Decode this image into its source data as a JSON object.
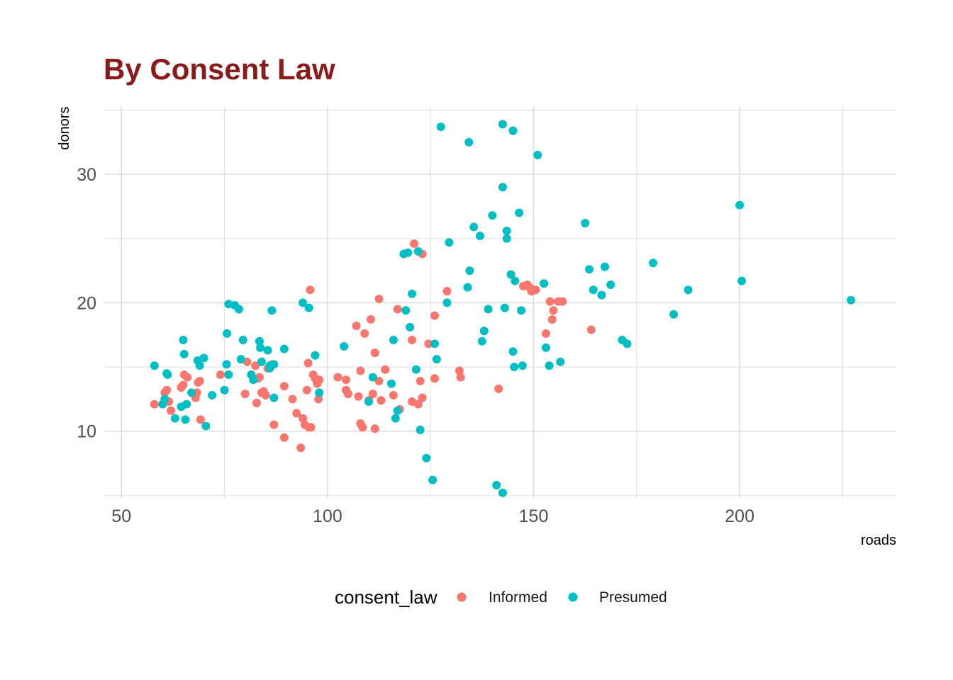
{
  "chart_data": {
    "type": "scatter",
    "title": "By Consent Law",
    "xlabel": "roads",
    "ylabel": "donors",
    "xlim": [
      46,
      238
    ],
    "ylim": [
      4.8,
      35.3
    ],
    "x_ticks": [
      50,
      100,
      150,
      200
    ],
    "x_minor_ticks": [
      75,
      125,
      175,
      225
    ],
    "y_ticks": [
      10,
      20,
      30
    ],
    "y_minor_ticks": [
      5,
      15,
      25,
      35
    ],
    "grid": true,
    "legend": {
      "title": "consent_law",
      "position": "bottom"
    },
    "colors": {
      "title": "#8b1a1a",
      "grid": "#d9d9d9"
    },
    "series": [
      {
        "name": "Informed",
        "color": "#f8766d",
        "points": [
          [
            58,
            12.1
          ],
          [
            60.5,
            13.0
          ],
          [
            61,
            13.2
          ],
          [
            61.5,
            12.3
          ],
          [
            62,
            11.6
          ],
          [
            64.5,
            13.4
          ],
          [
            65,
            13.6
          ],
          [
            65.2,
            14.4
          ],
          [
            66,
            14.2
          ],
          [
            68,
            12.6
          ],
          [
            68.3,
            13.0
          ],
          [
            68.6,
            13.8
          ],
          [
            69,
            13.9
          ],
          [
            69.2,
            10.9
          ],
          [
            74,
            14.4
          ],
          [
            76,
            14.4
          ],
          [
            80,
            12.9
          ],
          [
            80.5,
            15.4
          ],
          [
            82.5,
            15.1
          ],
          [
            82.8,
            12.2
          ],
          [
            83,
            14.1
          ],
          [
            83.5,
            14.2
          ],
          [
            84,
            13.0
          ],
          [
            84.5,
            13.1
          ],
          [
            85,
            12.8
          ],
          [
            85.5,
            14.9
          ],
          [
            86.5,
            15.2
          ],
          [
            87,
            10.5
          ],
          [
            89.5,
            13.5
          ],
          [
            89.5,
            9.5
          ],
          [
            91.5,
            12.5
          ],
          [
            92.5,
            11.4
          ],
          [
            93.5,
            8.7
          ],
          [
            94,
            11.0
          ],
          [
            94.5,
            10.5
          ],
          [
            95,
            13.2
          ],
          [
            95.3,
            15.3
          ],
          [
            95.5,
            10.3
          ],
          [
            96,
            10.3
          ],
          [
            95.8,
            21.0
          ],
          [
            96.5,
            14.4
          ],
          [
            97,
            14.1
          ],
          [
            97.5,
            13.7
          ],
          [
            97.8,
            12.5
          ],
          [
            98,
            14.0
          ],
          [
            102.5,
            14.2
          ],
          [
            104.5,
            14.0
          ],
          [
            104.5,
            13.2
          ],
          [
            105,
            12.9
          ],
          [
            107,
            18.2
          ],
          [
            107.5,
            12.7
          ],
          [
            108,
            14.7
          ],
          [
            108,
            10.6
          ],
          [
            108.5,
            10.3
          ],
          [
            109,
            17.6
          ],
          [
            110,
            12.4
          ],
          [
            110.5,
            18.7
          ],
          [
            111,
            12.9
          ],
          [
            111.5,
            10.2
          ],
          [
            111.5,
            16.1
          ],
          [
            112.5,
            20.3
          ],
          [
            112.5,
            13.9
          ],
          [
            113,
            12.4
          ],
          [
            114,
            14.8
          ],
          [
            116,
            12.8
          ],
          [
            117,
            19.5
          ],
          [
            117.5,
            11.7
          ],
          [
            120.5,
            12.3
          ],
          [
            120.5,
            17.1
          ],
          [
            121,
            24.6
          ],
          [
            122,
            12.1
          ],
          [
            122.5,
            13.9
          ],
          [
            123,
            23.8
          ],
          [
            123,
            12.6
          ],
          [
            124.5,
            16.8
          ],
          [
            126,
            14.1
          ],
          [
            126,
            19.0
          ],
          [
            129,
            20.9
          ],
          [
            132,
            14.7
          ],
          [
            132.3,
            14.2
          ],
          [
            141.5,
            13.3
          ],
          [
            147.5,
            21.3
          ],
          [
            148.5,
            21.4
          ],
          [
            149,
            21.2
          ],
          [
            149.5,
            20.9
          ],
          [
            150.5,
            21.0
          ],
          [
            153,
            17.6
          ],
          [
            154,
            20.1
          ],
          [
            154.5,
            18.7
          ],
          [
            154.8,
            19.4
          ],
          [
            156,
            20.1
          ],
          [
            157,
            20.1
          ],
          [
            164,
            17.9
          ]
        ]
      },
      {
        "name": "Presumed",
        "color": "#00bfc4",
        "points": [
          [
            58,
            15.1
          ],
          [
            60,
            12.1
          ],
          [
            60.5,
            12.5
          ],
          [
            61,
            14.5
          ],
          [
            61.2,
            14.4
          ],
          [
            63,
            11.0
          ],
          [
            64.5,
            11.9
          ],
          [
            65,
            17.1
          ],
          [
            65.2,
            16.0
          ],
          [
            65.5,
            10.9
          ],
          [
            65.8,
            12.1
          ],
          [
            67,
            13.0
          ],
          [
            68.5,
            15.5
          ],
          [
            69,
            15.1
          ],
          [
            70,
            15.7
          ],
          [
            70.5,
            10.4
          ],
          [
            72,
            12.8
          ],
          [
            75,
            13.2
          ],
          [
            75.5,
            15.2
          ],
          [
            75.6,
            17.6
          ],
          [
            76,
            19.9
          ],
          [
            76,
            14.4
          ],
          [
            77.5,
            19.8
          ],
          [
            78.5,
            19.5
          ],
          [
            79,
            15.6
          ],
          [
            79.5,
            17.1
          ],
          [
            81.5,
            14.4
          ],
          [
            82,
            14.0
          ],
          [
            83.5,
            17.0
          ],
          [
            83.7,
            16.5
          ],
          [
            84,
            15.4
          ],
          [
            85.5,
            16.3
          ],
          [
            86,
            15.1
          ],
          [
            86,
            14.9
          ],
          [
            86.5,
            19.4
          ],
          [
            87,
            12.6
          ],
          [
            87,
            15.2
          ],
          [
            89.5,
            16.4
          ],
          [
            94,
            20.0
          ],
          [
            95.5,
            19.6
          ],
          [
            97,
            15.9
          ],
          [
            98,
            13.0
          ],
          [
            104,
            16.6
          ],
          [
            110,
            12.3
          ],
          [
            111,
            14.2
          ],
          [
            115.5,
            13.7
          ],
          [
            116,
            17.1
          ],
          [
            116.5,
            11.0
          ],
          [
            117,
            11.6
          ],
          [
            118.5,
            23.8
          ],
          [
            119,
            19.4
          ],
          [
            119.5,
            23.9
          ],
          [
            120,
            18.1
          ],
          [
            120.5,
            20.7
          ],
          [
            121.5,
            14.8
          ],
          [
            122,
            24.0
          ],
          [
            122.5,
            10.1
          ],
          [
            124,
            7.9
          ],
          [
            125.5,
            6.2
          ],
          [
            126,
            16.8
          ],
          [
            126.5,
            15.6
          ],
          [
            127.5,
            33.7
          ],
          [
            129,
            20.0
          ],
          [
            129.5,
            24.7
          ],
          [
            134,
            21.2
          ],
          [
            134.3,
            32.5
          ],
          [
            134.5,
            22.5
          ],
          [
            135.5,
            25.9
          ],
          [
            137,
            25.2
          ],
          [
            137.5,
            17.0
          ],
          [
            138,
            17.8
          ],
          [
            139,
            19.5
          ],
          [
            140,
            26.8
          ],
          [
            141,
            5.8
          ],
          [
            142.5,
            5.2
          ],
          [
            142.5,
            33.9
          ],
          [
            142.5,
            29.0
          ],
          [
            143,
            19.6
          ],
          [
            143.5,
            25.6
          ],
          [
            143.5,
            25.0
          ],
          [
            144.5,
            22.2
          ],
          [
            145,
            33.4
          ],
          [
            145,
            16.2
          ],
          [
            145.3,
            15.0
          ],
          [
            145.5,
            21.7
          ],
          [
            146.5,
            27.0
          ],
          [
            147,
            19.4
          ],
          [
            147.3,
            15.1
          ],
          [
            151,
            31.5
          ],
          [
            152.5,
            21.5
          ],
          [
            153,
            16.5
          ],
          [
            153.8,
            15.1
          ],
          [
            156.5,
            15.4
          ],
          [
            162.5,
            26.2
          ],
          [
            163.5,
            22.6
          ],
          [
            164.5,
            21.0
          ],
          [
            166.5,
            20.6
          ],
          [
            167.3,
            22.8
          ],
          [
            168.7,
            21.4
          ],
          [
            171.5,
            17.1
          ],
          [
            172.7,
            16.8
          ],
          [
            179,
            23.1
          ],
          [
            184,
            19.1
          ],
          [
            187.5,
            21.0
          ],
          [
            200,
            27.6
          ],
          [
            200.5,
            21.7
          ],
          [
            227,
            20.2
          ]
        ]
      }
    ]
  }
}
